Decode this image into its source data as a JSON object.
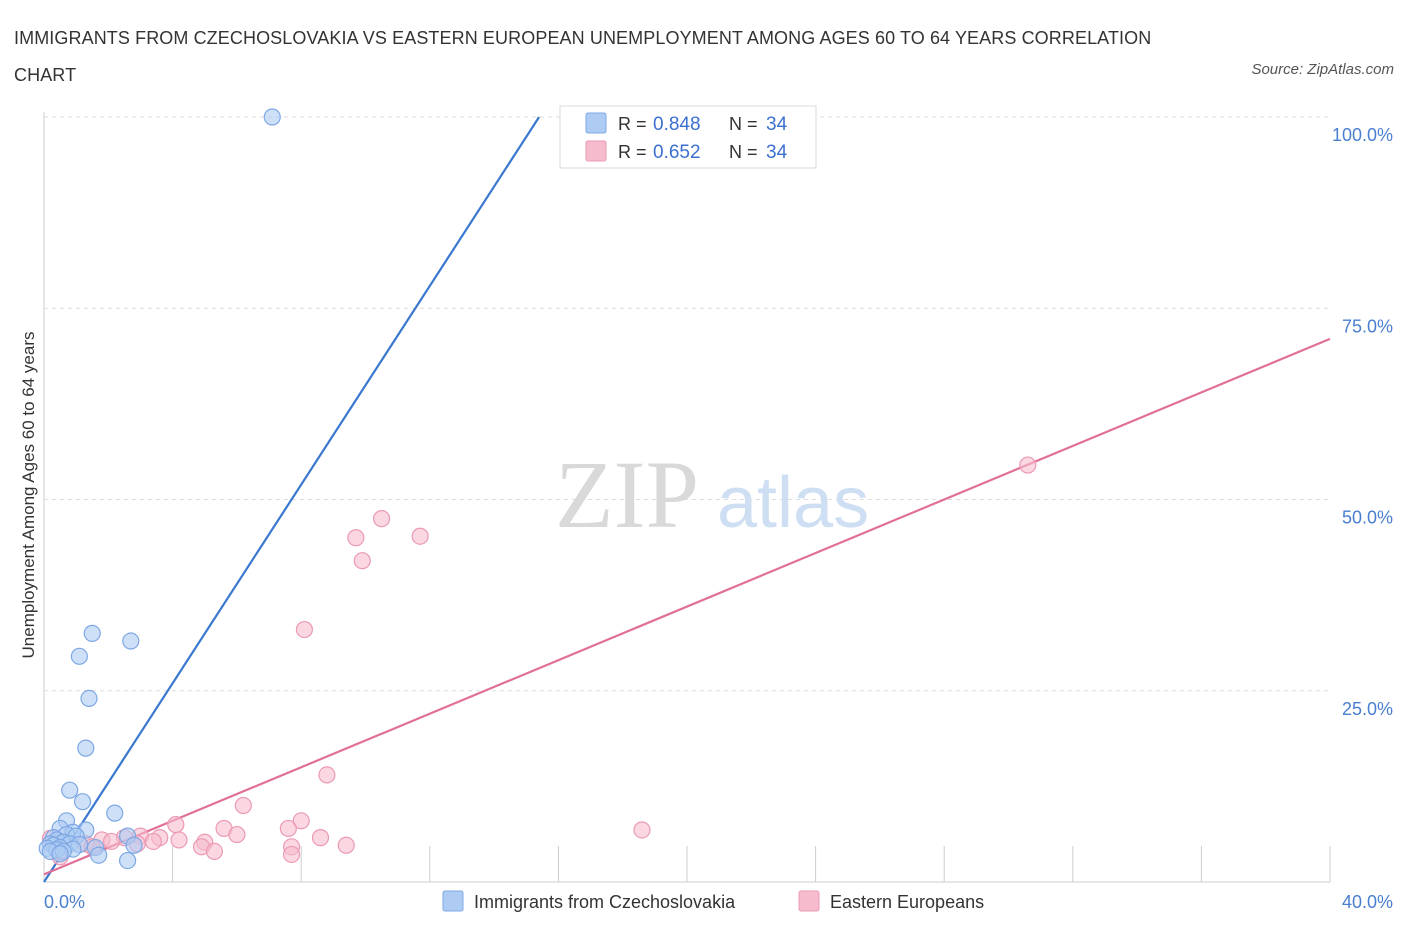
{
  "title": "IMMIGRANTS FROM CZECHOSLOVAKIA VS EASTERN EUROPEAN UNEMPLOYMENT AMONG AGES 60 TO 64 YEARS CORRELATION CHART",
  "source": "Source: ZipAtlas.com",
  "watermark": {
    "zip": "ZIP",
    "atlas": "atlas"
  },
  "colors": {
    "blue": "#3a78d0",
    "blue_fill": "#aecbf3",
    "pink": "#e07098",
    "pink_fill": "#f6bccd",
    "axis_label": "#4a7fd0",
    "grid": "#dddddd"
  },
  "legend": {
    "rows": [
      {
        "r_label": "R = ",
        "r_value": "0.848",
        "n_label": "N = ",
        "n_value": "34"
      },
      {
        "r_label": "R = ",
        "r_value": "0.652",
        "n_label": "N = ",
        "n_value": "34"
      }
    ]
  },
  "chart_data": {
    "type": "scatter",
    "title": "IMMIGRANTS FROM CZECHOSLOVAKIA VS EASTERN EUROPEAN UNEMPLOYMENT AMONG AGES 60 TO 64 YEARS CORRELATION CHART",
    "xlabel": "",
    "ylabel": "Unemployment Among Ages 60 to 64 years",
    "xlim": [
      0,
      40
    ],
    "ylim": [
      0,
      100
    ],
    "x_tick_labels": {
      "left": "0.0%",
      "right": "40.0%"
    },
    "y_tick_labels": [
      "25.0%",
      "50.0%",
      "75.0%",
      "100.0%"
    ],
    "y_ticks": [
      25,
      50,
      75,
      100
    ],
    "series": [
      {
        "name": "Immigrants from Czechoslovakia",
        "color": "blue",
        "r": 0.848,
        "n": 34,
        "trend": {
          "x0": 0,
          "y0": 0,
          "x1": 15.4,
          "y1": 100
        },
        "points": [
          [
            7.1,
            100
          ],
          [
            1.5,
            32.5
          ],
          [
            2.7,
            31.5
          ],
          [
            1.1,
            29.5
          ],
          [
            1.4,
            24
          ],
          [
            1.3,
            17.5
          ],
          [
            0.8,
            12
          ],
          [
            1.2,
            10.5
          ],
          [
            2.2,
            9
          ],
          [
            0.7,
            8
          ],
          [
            0.5,
            7
          ],
          [
            1.3,
            6.8
          ],
          [
            0.9,
            6.5
          ],
          [
            0.7,
            6.2
          ],
          [
            1.0,
            6
          ],
          [
            2.6,
            6
          ],
          [
            0.3,
            5.8
          ],
          [
            0.4,
            5.5
          ],
          [
            0.6,
            5.2
          ],
          [
            0.2,
            5
          ],
          [
            0.8,
            5
          ],
          [
            1.1,
            4.9
          ],
          [
            0.3,
            4.8
          ],
          [
            0.5,
            4.5
          ],
          [
            2.8,
            4.8
          ],
          [
            0.1,
            4.4
          ],
          [
            0.9,
            4.3
          ],
          [
            1.6,
            4.5
          ],
          [
            0.4,
            4.2
          ],
          [
            0.2,
            4
          ],
          [
            0.6,
            4
          ],
          [
            0.5,
            3.7
          ],
          [
            1.7,
            3.5
          ],
          [
            2.6,
            2.8
          ]
        ]
      },
      {
        "name": "Eastern Europeans",
        "color": "pink",
        "r": 0.652,
        "n": 34,
        "trend": {
          "x0": 0,
          "y0": 1,
          "x1": 40,
          "y1": 71
        },
        "points": [
          [
            30.6,
            54.5
          ],
          [
            10.5,
            47.5
          ],
          [
            9.7,
            45
          ],
          [
            11.7,
            45.2
          ],
          [
            9.9,
            42
          ],
          [
            8.1,
            33
          ],
          [
            8.8,
            14
          ],
          [
            6.2,
            10
          ],
          [
            8.0,
            8
          ],
          [
            4.1,
            7.5
          ],
          [
            7.6,
            7
          ],
          [
            5.6,
            7
          ],
          [
            18.6,
            6.8
          ],
          [
            6.0,
            6.2
          ],
          [
            3.0,
            6
          ],
          [
            3.6,
            5.8
          ],
          [
            2.5,
            5.8
          ],
          [
            8.6,
            5.8
          ],
          [
            1.8,
            5.5
          ],
          [
            4.2,
            5.5
          ],
          [
            2.1,
            5.3
          ],
          [
            3.4,
            5.3
          ],
          [
            1.3,
            5
          ],
          [
            5.0,
            5.2
          ],
          [
            2.9,
            5
          ],
          [
            9.4,
            4.8
          ],
          [
            1.5,
            4.6
          ],
          [
            4.9,
            4.6
          ],
          [
            7.7,
            4.6
          ],
          [
            5.3,
            4
          ],
          [
            0.5,
            4
          ],
          [
            7.7,
            3.6
          ],
          [
            0.5,
            3.3
          ],
          [
            0.2,
            5.7
          ]
        ]
      }
    ]
  }
}
